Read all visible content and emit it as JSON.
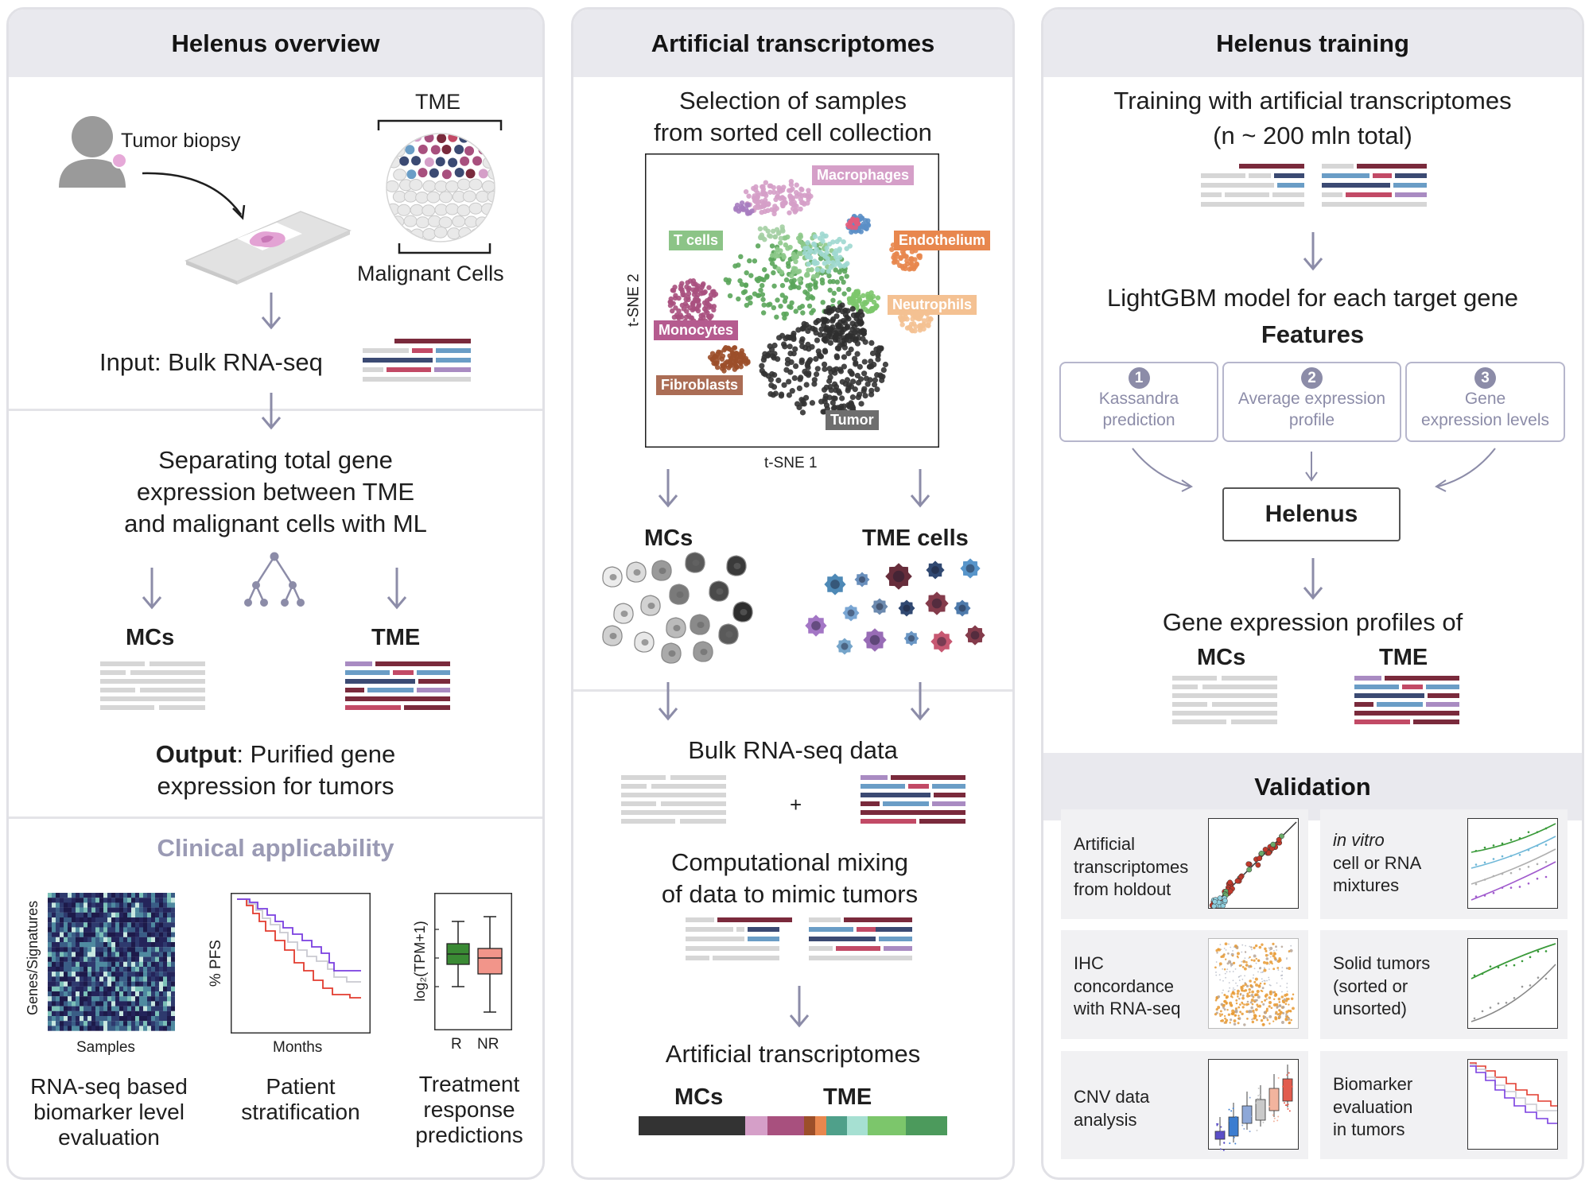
{
  "colors": {
    "panel_border": "#e1e1e6",
    "header_bg": "#e9e9ee",
    "arrow": "#8c8ca8",
    "dark_red": "#7a2a3c",
    "navy": "#3b4a73",
    "light_blue": "#6a9dc6",
    "pink_red": "#c24a66",
    "purple": "#a98bc2",
    "gray_bar": "#d6d6d6"
  },
  "overview": {
    "title": "Helenus overview",
    "tumor_biopsy": "Tumor biopsy",
    "tme": "TME",
    "malignant_cells": "Malignant Cells",
    "input": "Input: Bulk RNA-seq",
    "separating": [
      "Separating total gene",
      "expression between TME",
      "and malignant cells with ML"
    ],
    "mcs": "MCs",
    "tme_label": "TME",
    "output_bold": "Output",
    "output_rest": ": Purified gene",
    "output_line2": "expression for tumors",
    "clinical_title": "Clinical applicability",
    "heatmap_ylabel": "Genes/Signatures",
    "heatmap_xlabel": "Samples",
    "km_ylabel": "% PFS",
    "km_xlabel": "Months",
    "box_ylabel": "log₂(TPM+1)",
    "box_r": "R",
    "box_nr": "NR",
    "cap1": [
      "RNA-seq based",
      "biomarker level",
      "evaluation"
    ],
    "cap2": [
      "Patient",
      "stratification"
    ],
    "cap3": [
      "Treatment",
      "response",
      "predictions"
    ]
  },
  "artificial": {
    "title": "Artificial transcriptomes",
    "selection": [
      "Selection of samples",
      "from sorted cell collection"
    ],
    "tsne_x": "t-SNE 1",
    "tsne_y": "t-SNE 2",
    "clusters": {
      "macrophages": "Macrophages",
      "tcells": "T cells",
      "endothelium": "Endothelium",
      "neutrophils": "Neutrophils",
      "monocytes": "Monocytes",
      "fibroblasts": "Fibroblasts",
      "tumor": "Tumor"
    },
    "mcs": "MCs",
    "tme_cells": "TME cells",
    "bulk": "Bulk RNA-seq data",
    "plus": "+",
    "mixing": [
      "Computational mixing",
      "of data to mimic tumors"
    ],
    "artificial_label": "Artificial transcriptomes",
    "bar_mcs": "MCs",
    "bar_tme": "TME"
  },
  "training": {
    "title": "Helenus training",
    "training_line1": "Training with artificial transcriptomes",
    "training_line2": "(n ~ 200 mln total)",
    "lightgbm": "LightGBM model for each target gene",
    "features": "Features",
    "feature_boxes": [
      {
        "num": "1",
        "lines": [
          "Kassandra",
          "prediction"
        ]
      },
      {
        "num": "2",
        "lines": [
          "Average expression",
          "profile"
        ]
      },
      {
        "num": "3",
        "lines": [
          "Gene",
          "expression levels"
        ]
      }
    ],
    "helenus": "Helenus",
    "profiles": "Gene expression profiles of",
    "mcs": "MCs",
    "tme": "TME"
  },
  "validation": {
    "title": "Validation",
    "cards": [
      {
        "lines": [
          "Artificial",
          "transcriptomes",
          "from holdout"
        ]
      },
      {
        "lines": [
          "in vitro",
          "cell or RNA",
          "mixtures"
        ]
      },
      {
        "lines": [
          "IHC",
          "concordance",
          "with RNA-seq"
        ]
      },
      {
        "lines": [
          "Solid tumors",
          "(sorted or",
          "unsorted)"
        ]
      },
      {
        "lines": [
          "CNV data",
          "analysis"
        ]
      },
      {
        "lines": [
          "Biomarker",
          "evaluation",
          "in tumors"
        ]
      }
    ]
  }
}
